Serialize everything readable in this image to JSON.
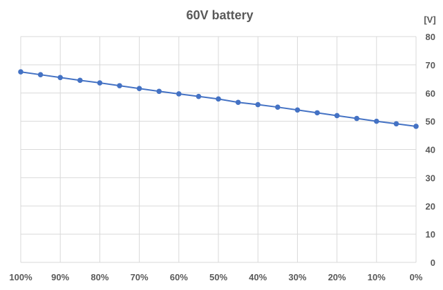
{
  "chart_data": {
    "type": "line",
    "title": "60V battery",
    "ylabel": "[V]",
    "xlabel": "",
    "x": [
      "100%",
      "95%",
      "90%",
      "85%",
      "80%",
      "75%",
      "70%",
      "65%",
      "60%",
      "55%",
      "50%",
      "45%",
      "40%",
      "35%",
      "30%",
      "25%",
      "20%",
      "15%",
      "10%",
      "5%",
      "0%"
    ],
    "x_tick_labels": [
      "100%",
      "90%",
      "80%",
      "70%",
      "60%",
      "50%",
      "40%",
      "30%",
      "20%",
      "10%",
      "0%"
    ],
    "y_tick_labels": [
      "0",
      "10",
      "20",
      "30",
      "40",
      "50",
      "60",
      "70",
      "80"
    ],
    "ylim": [
      0,
      80
    ],
    "grid": true,
    "y_axis_side": "right",
    "series": [
      {
        "name": "60V battery",
        "color": "#4472c4",
        "values": [
          67.5,
          66.5,
          65.5,
          64.5,
          63.6,
          62.6,
          61.6,
          60.6,
          59.7,
          58.8,
          57.9,
          56.7,
          55.9,
          55.0,
          54.0,
          53.0,
          52.0,
          51.0,
          50.0,
          49.1,
          48.2
        ]
      }
    ]
  }
}
